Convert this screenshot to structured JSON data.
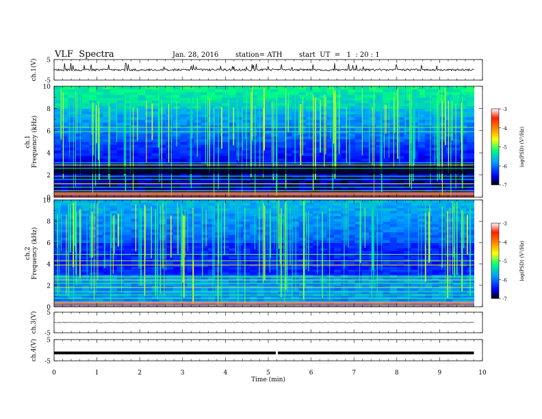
{
  "header": {
    "title": "VLF  Spectra",
    "date": "Jan. 28, 2016",
    "station": "station= ATH",
    "start": "start  UT  =   1  : 20 : 1"
  },
  "chart_data": {
    "type": "heatmap",
    "xlabel": "Time  (min)",
    "xlim": [
      0,
      10
    ],
    "x_ticks": [
      "0",
      "1",
      "2",
      "3",
      "4",
      "5",
      "6",
      "7",
      "8",
      "9",
      "10"
    ],
    "record_end_min": 9.8,
    "panels": [
      {
        "id": "ch1v",
        "kind": "waveform",
        "ylabel": "ch.1(V)",
        "ylim": [
          -5,
          5
        ],
        "y_ticks": [
          "5",
          "-5"
        ],
        "baseline": 0
      },
      {
        "id": "ch1",
        "kind": "spectrogram",
        "ylabel": "ch.1\nFrequency (kHz)",
        "ylim": [
          0,
          10
        ],
        "y_ticks": [
          "0",
          "2",
          "4",
          "6",
          "8",
          "10"
        ]
      },
      {
        "id": "ch2",
        "kind": "spectrogram",
        "ylabel": "ch.2\nFrequency (kHz)",
        "ylim": [
          0,
          10
        ],
        "y_ticks": [
          "0",
          "2",
          "4",
          "6",
          "8",
          "10"
        ]
      },
      {
        "id": "ch3v",
        "kind": "waveform",
        "ylabel": "ch.3(V)",
        "ylim": [
          -5,
          5
        ],
        "y_ticks": [
          "5",
          "-5"
        ],
        "baseline": 0
      },
      {
        "id": "ch4v",
        "kind": "waveform",
        "ylabel": "ch.4(V)",
        "ylim": [
          -5,
          5
        ],
        "y_ticks": [
          "5",
          "-5"
        ],
        "baseline": 0
      }
    ],
    "colorbar": {
      "label": "log(PSD) (V²/Hz)",
      "range": [
        -7,
        -3
      ],
      "ticks": [
        "-3",
        "-4",
        "-5",
        "-6",
        "-7"
      ],
      "colors": [
        "#000000",
        "#0000ff",
        "#00c8ff",
        "#00ff80",
        "#ffff00",
        "#ff8000",
        "#ff0000",
        "#ffffff"
      ]
    },
    "ch1_bands_khz": [
      0.3,
      0.6,
      0.9,
      1.2,
      1.6,
      1.9,
      2.6,
      2.9,
      3.1,
      5.9,
      6.3
    ],
    "ch2_bands_khz": [
      0.4,
      0.8,
      1.1,
      1.4,
      1.8,
      2.2,
      2.5,
      2.8,
      3.9,
      4.3,
      4.9
    ]
  }
}
